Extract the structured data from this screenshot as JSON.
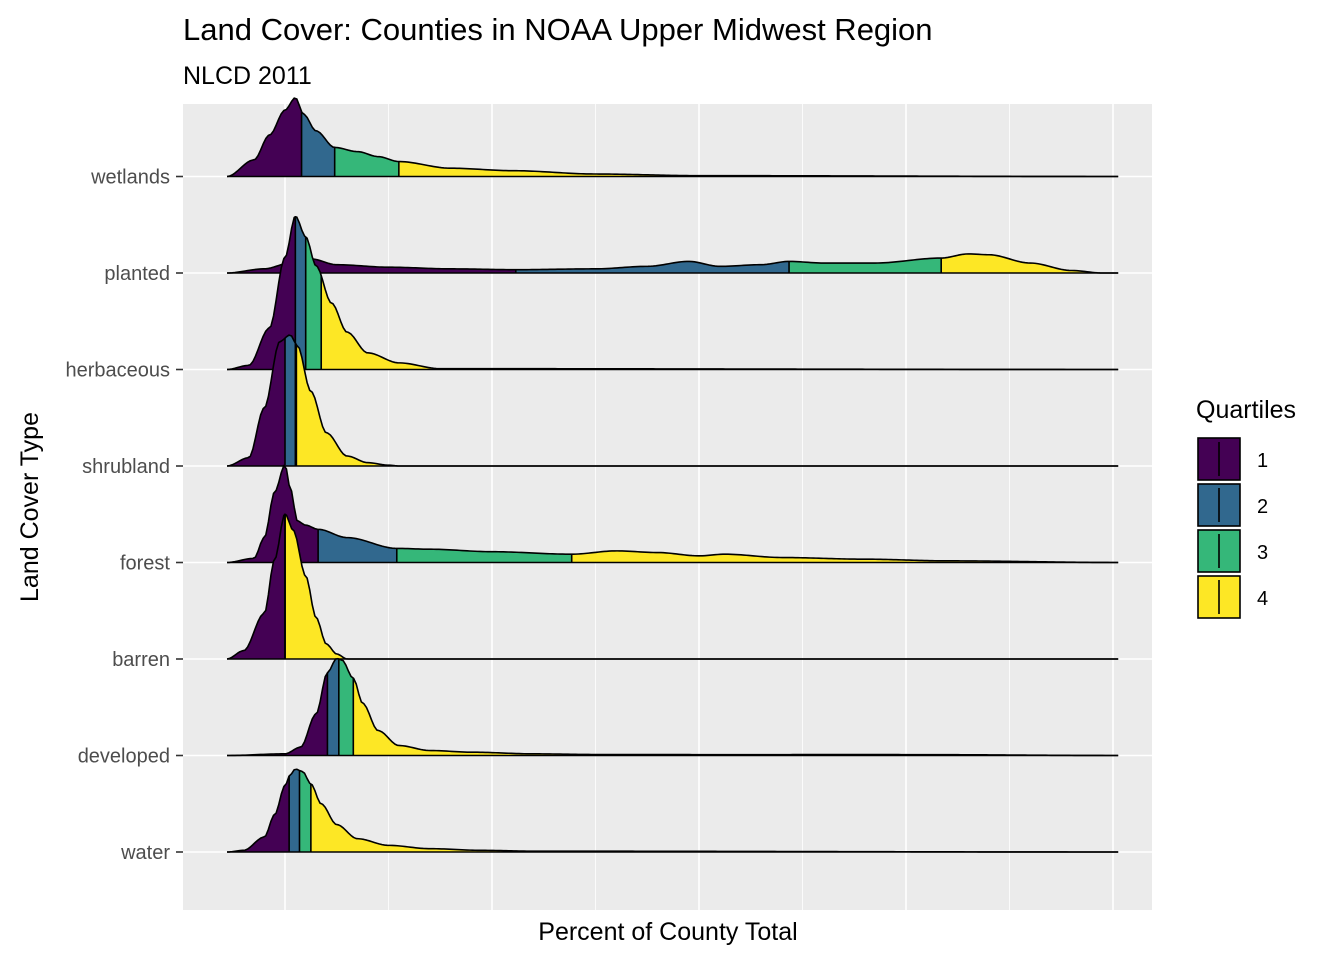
{
  "chart_data": {
    "type": "ridgeline",
    "title": "Land Cover: Counties in NOAA Upper Midwest Region",
    "subtitle": "NLCD 2011",
    "xlabel": "Percent of County Total",
    "ylabel": "Land Cover Type",
    "x_tick_labels_shown": false,
    "xlim": [
      -1,
      93
    ],
    "grid": true,
    "legend": {
      "title": "Quartiles",
      "position": "right",
      "entries": [
        "1",
        "2",
        "3",
        "4"
      ]
    },
    "colors": {
      "q1": "#440154",
      "q2": "#31688E",
      "q3": "#35B779",
      "q4": "#FDE725",
      "panel": "#EBEBEB",
      "grid": "#FFFFFF",
      "outline": "#000000"
    },
    "categories": [
      "water",
      "developed",
      "barren",
      "forest",
      "shrubland",
      "herbaceous",
      "planted",
      "wetlands"
    ],
    "series": [
      {
        "name": "water",
        "quartiles": [
          0.4,
          1.4,
          2.5
        ],
        "density": [
          [
            -5.6,
            0
          ],
          [
            -4,
            0.02
          ],
          [
            -2,
            0.18
          ],
          [
            -1,
            0.45
          ],
          [
            0,
            0.8
          ],
          [
            0.5,
            0.93
          ],
          [
            1,
            1.0
          ],
          [
            1.7,
            0.97
          ],
          [
            2.5,
            0.82
          ],
          [
            3.5,
            0.58
          ],
          [
            5,
            0.33
          ],
          [
            7,
            0.16
          ],
          [
            10,
            0.08
          ],
          [
            14,
            0.04
          ],
          [
            19,
            0.02
          ],
          [
            24,
            0.01
          ],
          [
            80,
            0
          ],
          [
            80.5,
            0
          ]
        ]
      },
      {
        "name": "developed",
        "quartiles": [
          4.1,
          5.2,
          6.6
        ],
        "density": [
          [
            -5.6,
            0
          ],
          [
            0,
            0.02
          ],
          [
            1.5,
            0.1
          ],
          [
            3,
            0.5
          ],
          [
            4.1,
            1.0
          ],
          [
            5,
            1.17
          ],
          [
            5.5,
            1.15
          ],
          [
            6.6,
            0.93
          ],
          [
            7.5,
            0.63
          ],
          [
            9,
            0.3
          ],
          [
            11,
            0.12
          ],
          [
            14,
            0.06
          ],
          [
            18,
            0.04
          ],
          [
            24,
            0.02
          ],
          [
            30,
            0.012
          ],
          [
            45,
            0.01
          ],
          [
            55,
            0.012
          ],
          [
            62,
            0.01
          ],
          [
            80.5,
            0
          ]
        ]
      },
      {
        "name": "barren",
        "quartiles": [
          0,
          0,
          0
        ],
        "density": [
          [
            -5.6,
            0
          ],
          [
            -4,
            0.1
          ],
          [
            -2,
            0.55
          ],
          [
            -1,
            1.2
          ],
          [
            0,
            1.75
          ],
          [
            0.8,
            1.55
          ],
          [
            2,
            1.0
          ],
          [
            3,
            0.5
          ],
          [
            4,
            0.18
          ],
          [
            5,
            0.06
          ],
          [
            6,
            0
          ],
          [
            80.5,
            0
          ]
        ]
      },
      {
        "name": "forest",
        "quartiles": [
          3.2,
          10.8,
          27.7
        ],
        "density": [
          [
            -5.6,
            0
          ],
          [
            -3,
            0.05
          ],
          [
            -2,
            0.3
          ],
          [
            -1,
            0.85
          ],
          [
            0,
            1.18
          ],
          [
            0.5,
            0.9
          ],
          [
            1.2,
            0.5
          ],
          [
            2,
            0.45
          ],
          [
            3.2,
            0.4
          ],
          [
            6,
            0.3
          ],
          [
            10.8,
            0.17
          ],
          [
            14,
            0.16
          ],
          [
            20,
            0.13
          ],
          [
            27.7,
            0.1
          ],
          [
            32,
            0.14
          ],
          [
            36,
            0.12
          ],
          [
            40,
            0.08
          ],
          [
            42.5,
            0.1
          ],
          [
            48,
            0.06
          ],
          [
            56,
            0.04
          ],
          [
            64,
            0.02
          ],
          [
            80.5,
            0
          ]
        ]
      },
      {
        "name": "shrubland",
        "quartiles": [
          0,
          1.0,
          1.1
        ],
        "density": [
          [
            -5.6,
            0
          ],
          [
            -3.5,
            0.1
          ],
          [
            -2,
            0.7
          ],
          [
            -0.5,
            1.5
          ],
          [
            0.5,
            1.58
          ],
          [
            1.2,
            1.45
          ],
          [
            2.5,
            0.9
          ],
          [
            4,
            0.4
          ],
          [
            6,
            0.12
          ],
          [
            8,
            0.04
          ],
          [
            10,
            0.01
          ],
          [
            11,
            0
          ],
          [
            80.5,
            0
          ]
        ]
      },
      {
        "name": "herbaceous",
        "quartiles": [
          1.0,
          2.0,
          3.5
        ],
        "density": [
          [
            -5.6,
            0
          ],
          [
            -3.5,
            0.05
          ],
          [
            -1.5,
            0.5
          ],
          [
            0,
            1.35
          ],
          [
            1,
            1.85
          ],
          [
            2,
            1.6
          ],
          [
            3,
            1.25
          ],
          [
            4.5,
            0.8
          ],
          [
            6,
            0.45
          ],
          [
            8,
            0.2
          ],
          [
            11,
            0.08
          ],
          [
            15,
            0.01
          ],
          [
            80.5,
            0
          ]
        ]
      },
      {
        "name": "planted",
        "quartiles": [
          22.3,
          48.7,
          63.4
        ],
        "density": [
          [
            -5.6,
            0
          ],
          [
            -2,
            0.05
          ],
          [
            0.5,
            0.12
          ],
          [
            1.5,
            0.25
          ],
          [
            1.8,
            0.28
          ],
          [
            2.5,
            0.17
          ],
          [
            5,
            0.1
          ],
          [
            10,
            0.07
          ],
          [
            16,
            0.05
          ],
          [
            22.3,
            0.04
          ],
          [
            30,
            0.05
          ],
          [
            35,
            0.08
          ],
          [
            39,
            0.14
          ],
          [
            42,
            0.08
          ],
          [
            46,
            0.1
          ],
          [
            48.7,
            0.14
          ],
          [
            52,
            0.12
          ],
          [
            57,
            0.12
          ],
          [
            63.4,
            0.18
          ],
          [
            66,
            0.23
          ],
          [
            68,
            0.22
          ],
          [
            72,
            0.12
          ],
          [
            76,
            0.03
          ],
          [
            79,
            0
          ],
          [
            80.5,
            0
          ]
        ]
      },
      {
        "name": "wetlands",
        "quartiles": [
          1.6,
          4.8,
          11.0
        ],
        "density": [
          [
            -5.6,
            0
          ],
          [
            -3,
            0.2
          ],
          [
            -1.5,
            0.5
          ],
          [
            0,
            0.8
          ],
          [
            1,
            0.95
          ],
          [
            1.8,
            0.75
          ],
          [
            3,
            0.55
          ],
          [
            4.8,
            0.35
          ],
          [
            7,
            0.3
          ],
          [
            9,
            0.24
          ],
          [
            11,
            0.18
          ],
          [
            16,
            0.1
          ],
          [
            22,
            0.07
          ],
          [
            30,
            0.03
          ],
          [
            40,
            0.01
          ],
          [
            80.5,
            0
          ]
        ]
      }
    ]
  }
}
